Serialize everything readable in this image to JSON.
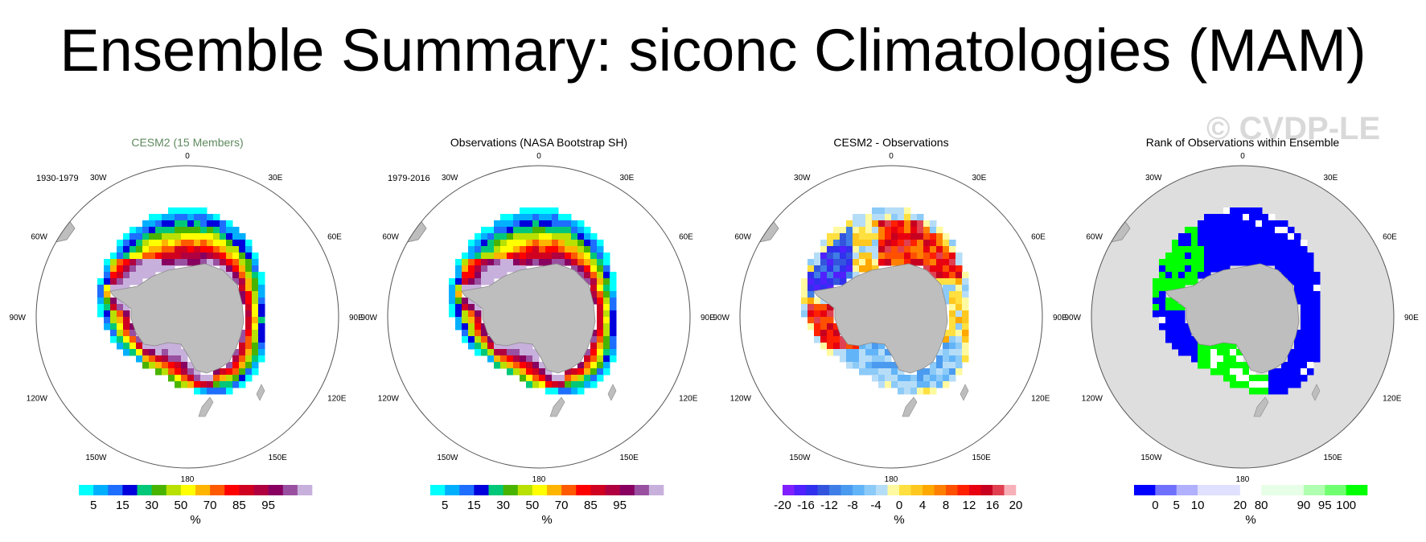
{
  "title": "Ensemble Summary: siconc Climatologies (MAM)",
  "watermark": "© CVDP-LE",
  "colors": {
    "land": "#bebebe",
    "frame": "#555555",
    "rank_background": "#dedede"
  },
  "lon_labels": [
    "0",
    "30E",
    "60E",
    "90E",
    "120E",
    "150E",
    "180",
    "150W",
    "120W",
    "90W",
    "60W",
    "30W"
  ],
  "colorbar_units": "%",
  "panels": [
    {
      "title": "CESM2 (15 Members)",
      "title_color": "#5e8a5e",
      "period": "1930-1979",
      "field": "model",
      "colorbar": {
        "colors": [
          "#00ffff",
          "#00b0ff",
          "#1e6fff",
          "#0000dd",
          "#00c878",
          "#48b400",
          "#b8e000",
          "#ffff00",
          "#ffb400",
          "#ff5a00",
          "#ff0000",
          "#d00020",
          "#b00040",
          "#880060",
          "#9950a0",
          "#c8b0dc"
        ],
        "labels": [
          "5",
          "15",
          "30",
          "50",
          "70",
          "85",
          "95"
        ],
        "label_boundaries": [
          1,
          3,
          5,
          7,
          9,
          11,
          13
        ]
      }
    },
    {
      "title": "Observations (NASA Bootstrap SH)",
      "title_color": "#000000",
      "period": "1979-2016",
      "field": "obs",
      "colorbar": {
        "colors": [
          "#00ffff",
          "#00b0ff",
          "#1e6fff",
          "#0000dd",
          "#00c878",
          "#48b400",
          "#b8e000",
          "#ffff00",
          "#ffb400",
          "#ff5a00",
          "#ff0000",
          "#d00020",
          "#b00040",
          "#880060",
          "#9950a0",
          "#c8b0dc"
        ],
        "labels": [
          "5",
          "15",
          "30",
          "50",
          "70",
          "85",
          "95"
        ],
        "label_boundaries": [
          1,
          3,
          5,
          7,
          9,
          11,
          13
        ]
      }
    },
    {
      "title": "CESM2 - Observations",
      "title_color": "#000000",
      "period": "",
      "field": "diff",
      "colorbar": {
        "colors": [
          "#8020ff",
          "#5020ff",
          "#3030ee",
          "#3355dd",
          "#3f7ee6",
          "#4a9bf0",
          "#62b4f8",
          "#8ccaf8",
          "#b6ddf8",
          "#fffaa0",
          "#ffe040",
          "#ffc820",
          "#ffa800",
          "#ff8000",
          "#ff5000",
          "#ff2000",
          "#e80010",
          "#c80020",
          "#e04050",
          "#f8b0b8"
        ],
        "labels": [
          "-20",
          "-16",
          "-12",
          "-8",
          "-4",
          "0",
          "4",
          "8",
          "12",
          "16",
          "20"
        ],
        "label_boundaries": [
          0,
          2,
          4,
          6,
          8,
          10,
          12,
          14,
          16,
          18,
          20
        ]
      }
    },
    {
      "title": "Rank of Observations within Ensemble",
      "title_color": "#000000",
      "period": "",
      "field": "rank",
      "colorbar": {
        "colors": [
          "#0000ff",
          "#7070ff",
          "#b0b0ff",
          "#e0e0ff",
          "#e0e0ff",
          "#ffffff",
          "#e6ffe6",
          "#e6ffe6",
          "#b0ffb0",
          "#70ff70",
          "#00ff00"
        ],
        "labels": [
          "0",
          "5",
          "10",
          "20",
          "80",
          "90",
          "95",
          "100"
        ],
        "label_boundaries": [
          1,
          2,
          3,
          5,
          6,
          8,
          9,
          10
        ]
      }
    }
  ]
}
